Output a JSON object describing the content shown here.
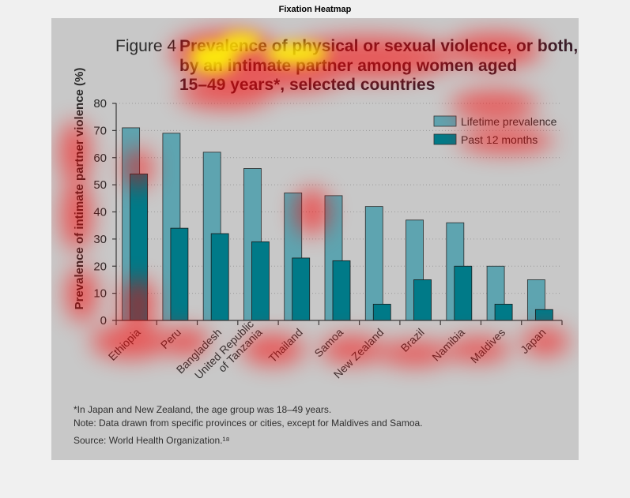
{
  "window": {
    "title": "Fixation Heatmap"
  },
  "figure": {
    "title_lead": "Figure 4",
    "title_lines": [
      "Prevalence of physical or sexual violence, or both,",
      "by an intimate partner among women aged",
      "15–49 years*, selected countries"
    ],
    "footnotes": [
      "*In Japan and New Zealand, the age group was 18–49 years.",
      "Note: Data drawn from specific provinces or cities, except for Maldives and Samoa.",
      "Source: World Health Organization.¹⁸"
    ]
  },
  "chart_data": {
    "type": "bar",
    "title": "Prevalence of physical or sexual violence, or both, by an intimate partner among women aged 15–49 years*, selected countries",
    "ylabel": "Prevalence of intimate partner violence (%)",
    "xlabel": "",
    "ylim": [
      0,
      80
    ],
    "yticks": [
      0,
      10,
      20,
      30,
      40,
      50,
      60,
      70,
      80
    ],
    "grid": true,
    "legend_position": "top-right",
    "categories": [
      "Ethiopia",
      "Peru",
      "Bangladesh",
      "United Republic\nof Tanzania",
      "Thailand",
      "Samoa",
      "New Zealand",
      "Brazil",
      "Namibia",
      "Maldives",
      "Japan"
    ],
    "series": [
      {
        "name": "Lifetime prevalence",
        "values": [
          71,
          69,
          62,
          56,
          47,
          46,
          42,
          37,
          36,
          20,
          15
        ],
        "color": "#5ea4b0"
      },
      {
        "name": "Past 12 months",
        "values": [
          54,
          34,
          32,
          29,
          23,
          22,
          6,
          15,
          20,
          6,
          4
        ],
        "color": "#007a88"
      }
    ]
  },
  "heatmap": {
    "hotspot_color": "#ff0000",
    "peak_color": "#ffff00"
  }
}
